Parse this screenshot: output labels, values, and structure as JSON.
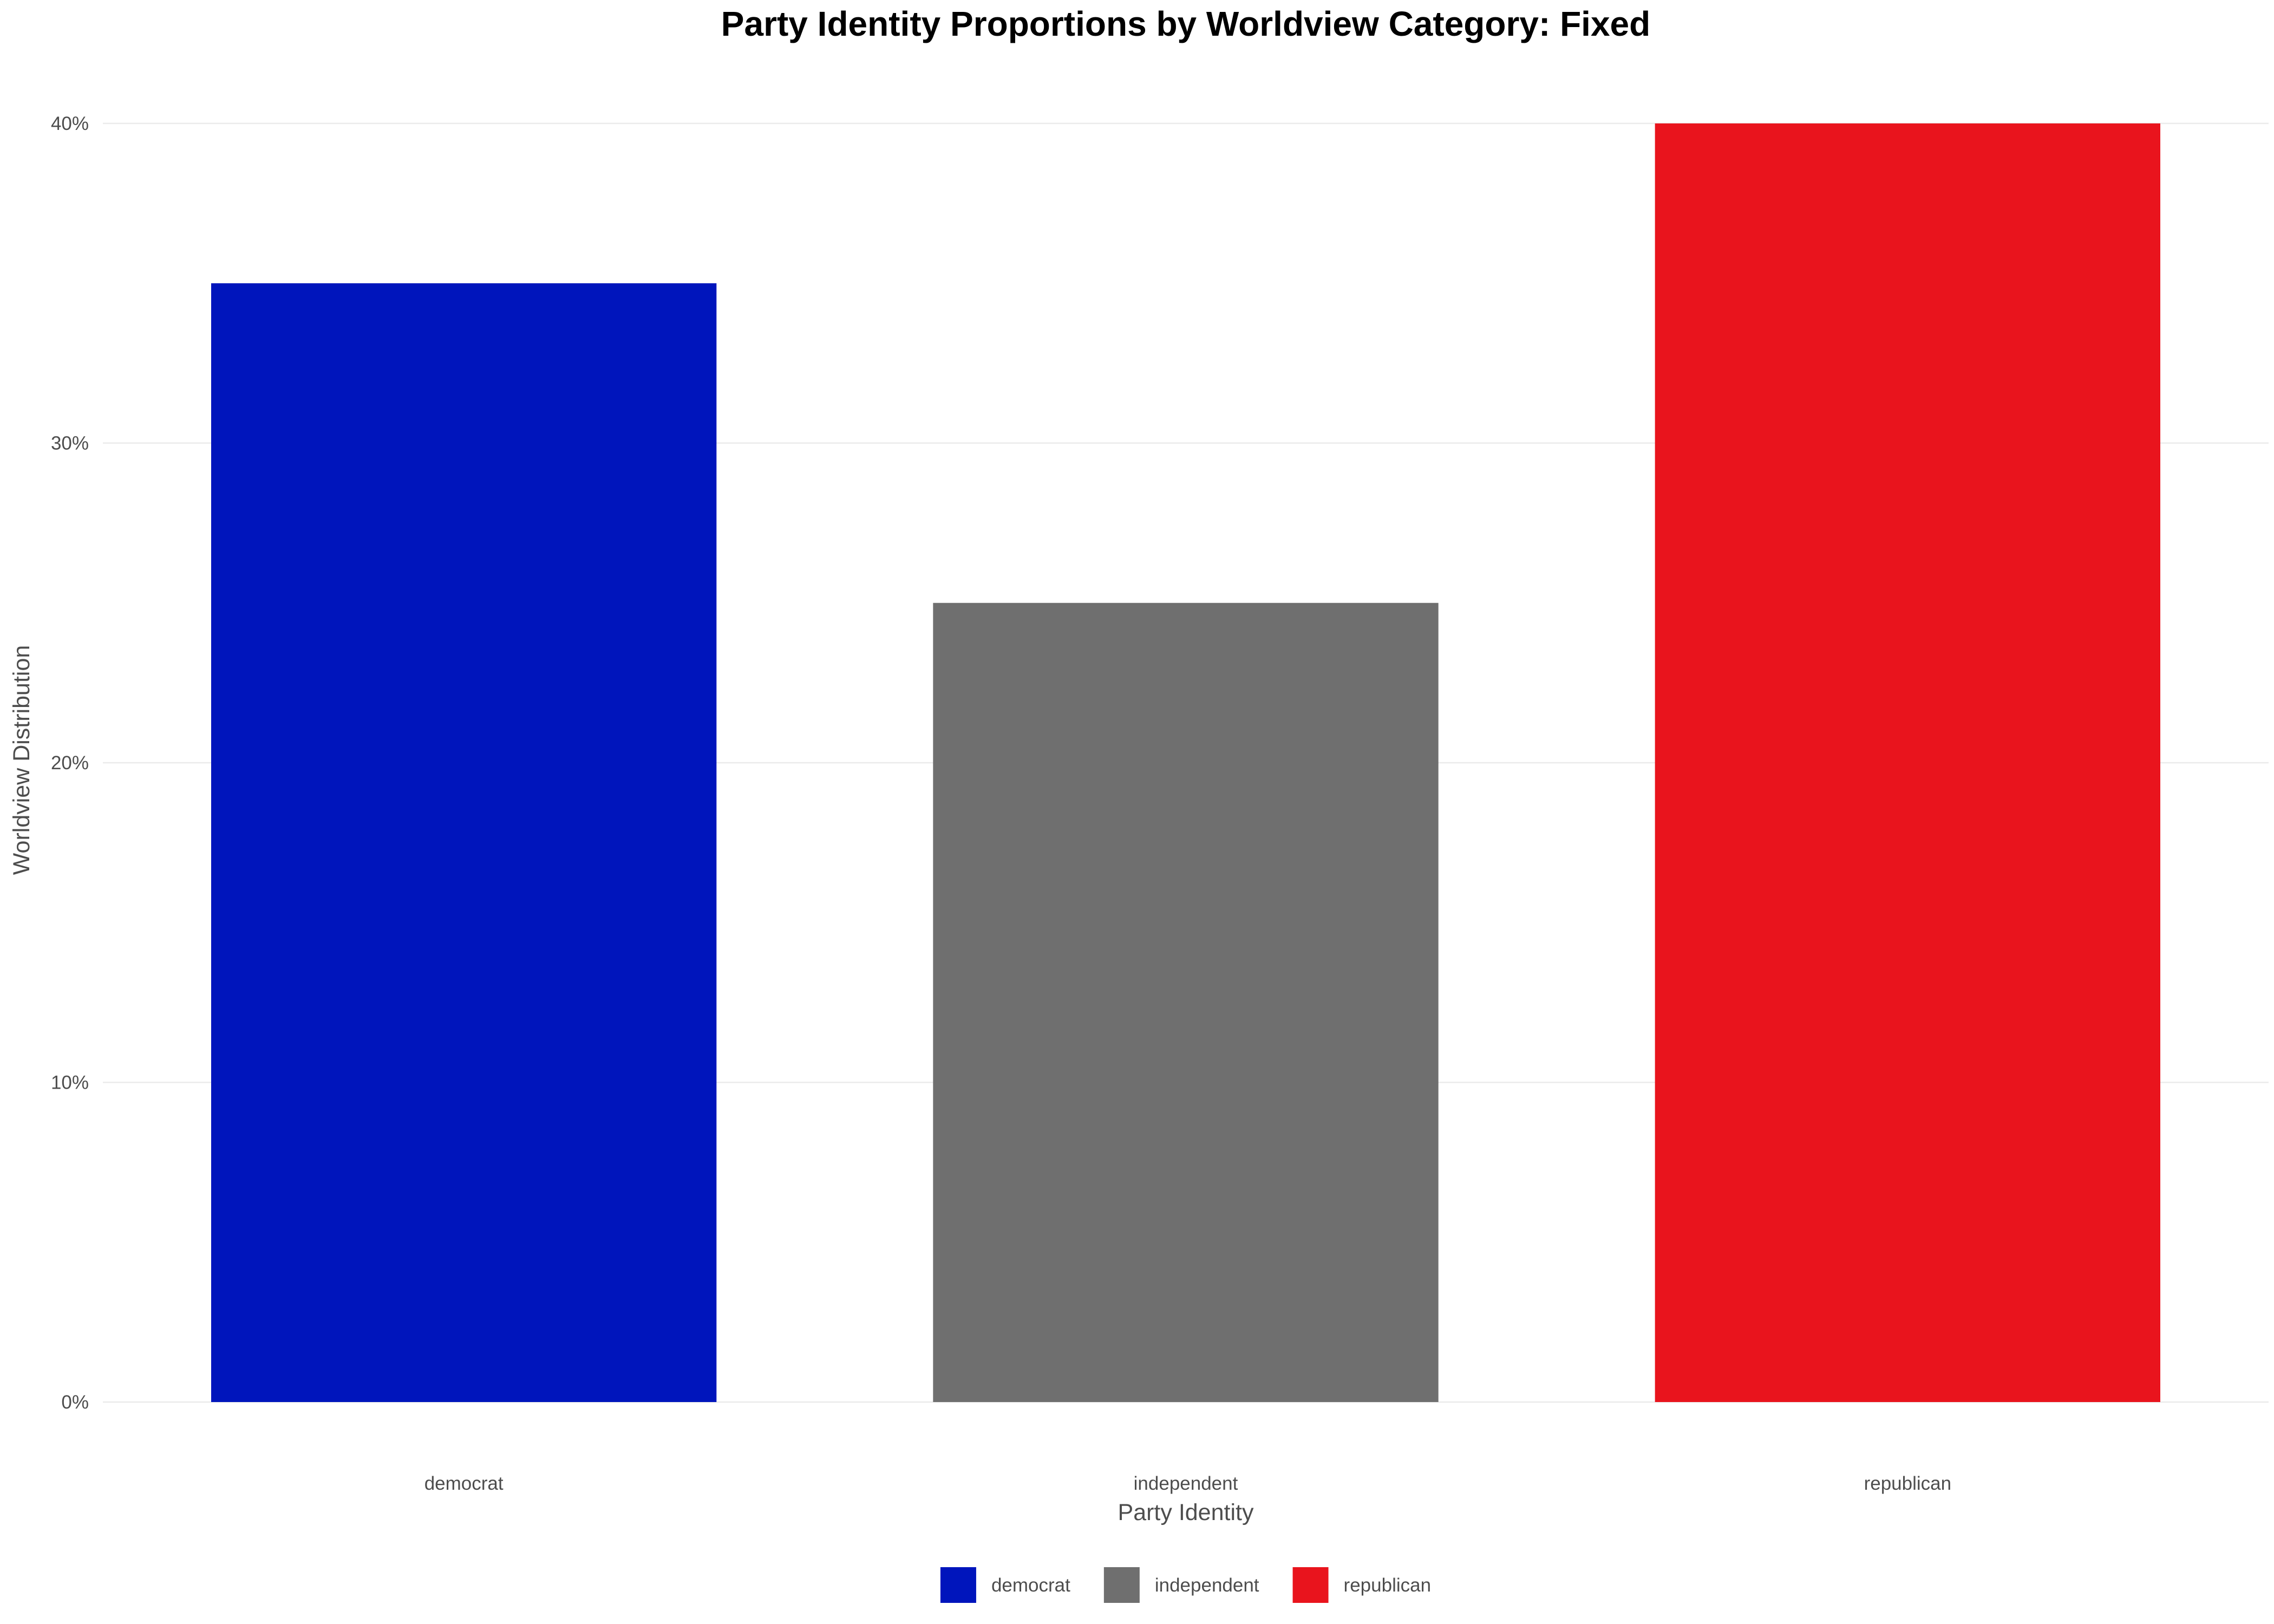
{
  "chart_data": {
    "type": "bar",
    "title": "Party Identity Proportions by Worldview Category: Fixed",
    "xlabel": "Party Identity",
    "ylabel": "Worldview Distribution",
    "categories": [
      "democrat",
      "independent",
      "republican"
    ],
    "values": [
      35,
      25,
      40
    ],
    "colors": [
      "#0015BC",
      "#6F6F6F",
      "#E9141D"
    ],
    "ylim": [
      0,
      40
    ],
    "yticks": [
      0,
      10,
      20,
      30,
      40
    ],
    "ytick_labels": [
      "0%",
      "10%",
      "20%",
      "30%",
      "40%"
    ],
    "grid": true,
    "legend": {
      "position": "bottom",
      "entries": [
        "democrat",
        "independent",
        "republican"
      ]
    }
  }
}
